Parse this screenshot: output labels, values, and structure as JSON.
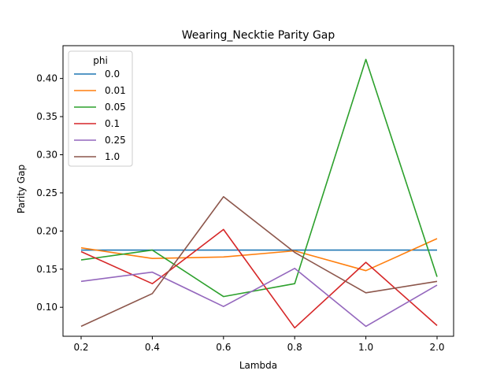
{
  "chart_data": {
    "type": "line",
    "title": "Wearing_Necktie Parity Gap",
    "xlabel": "Lambda",
    "ylabel": "Parity Gap",
    "categories": [
      "0.2",
      "0.4",
      "0.6",
      "0.8",
      "1.0",
      "2.0"
    ],
    "ylim": [
      0.062,
      0.443
    ],
    "yticks": [
      "0.10",
      "0.15",
      "0.20",
      "0.25",
      "0.30",
      "0.35",
      "0.40"
    ],
    "grid": false,
    "legend": {
      "title": "phi",
      "placement": "top-left"
    },
    "series": [
      {
        "name": "0.0",
        "color": "#1f77b4",
        "values": [
          0.175,
          0.175,
          0.175,
          0.175,
          0.175,
          0.175
        ]
      },
      {
        "name": "0.01",
        "color": "#ff7f0e",
        "values": [
          0.178,
          0.164,
          0.166,
          0.174,
          0.148,
          0.19
        ]
      },
      {
        "name": "0.05",
        "color": "#2ca02c",
        "values": [
          0.162,
          0.175,
          0.114,
          0.131,
          0.425,
          0.14
        ]
      },
      {
        "name": "0.1",
        "color": "#d62728",
        "values": [
          0.173,
          0.131,
          0.202,
          0.073,
          0.159,
          0.076
        ]
      },
      {
        "name": "0.25",
        "color": "#9467bd",
        "values": [
          0.134,
          0.146,
          0.101,
          0.151,
          0.075,
          0.129
        ]
      },
      {
        "name": "1.0",
        "color": "#8c564b",
        "values": [
          0.075,
          0.118,
          0.245,
          0.172,
          0.119,
          0.134
        ]
      }
    ]
  }
}
